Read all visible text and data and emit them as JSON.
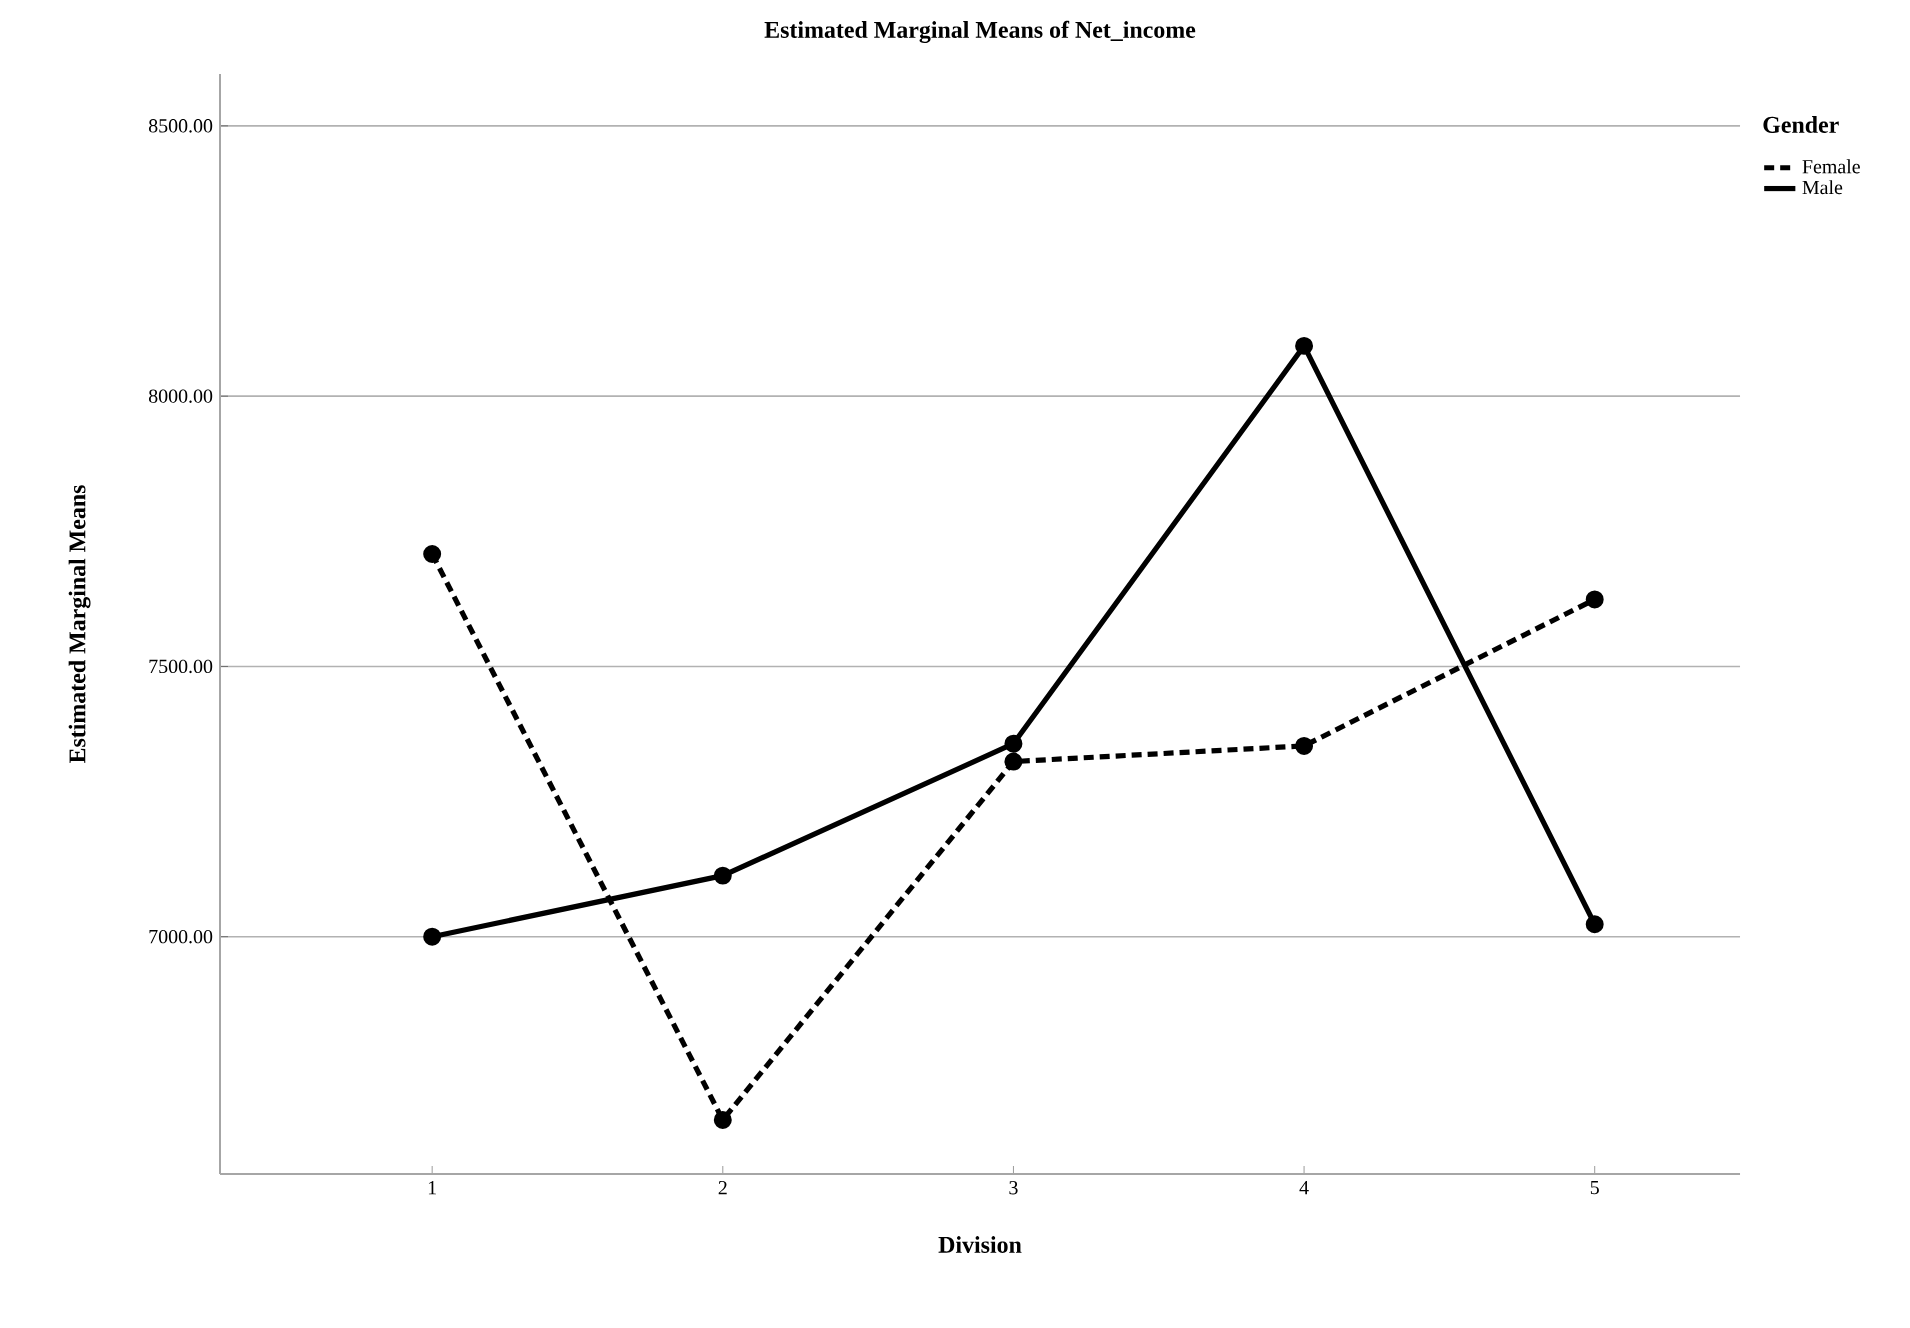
{
  "chart_data": {
    "type": "line",
    "title": "Estimated Marginal Means of Net_income",
    "xlabel": "Division",
    "ylabel": "Estimated Marginal Means",
    "legend_title": "Gender",
    "categories": [
      "1",
      "2",
      "3",
      "4",
      "5"
    ],
    "series": [
      {
        "name": "Female",
        "color": "#000000",
        "line_style": "dashed",
        "values": [
          7708,
          6661,
          7324,
          7353,
          7624
        ]
      },
      {
        "name": "Male",
        "color": "#000000",
        "line_style": "solid",
        "values": [
          7000,
          7113,
          7357,
          8093,
          7023
        ]
      }
    ],
    "ylim": [
      6561,
      8596
    ],
    "yticks": [
      {
        "value": 7000,
        "label": "7000.00"
      },
      {
        "value": 7500,
        "label": "7500.00"
      },
      {
        "value": 8000,
        "label": "8000.00"
      },
      {
        "value": 8500,
        "label": "8500.00"
      }
    ],
    "grid": "y",
    "legend": "top right",
    "marker": "circle"
  }
}
